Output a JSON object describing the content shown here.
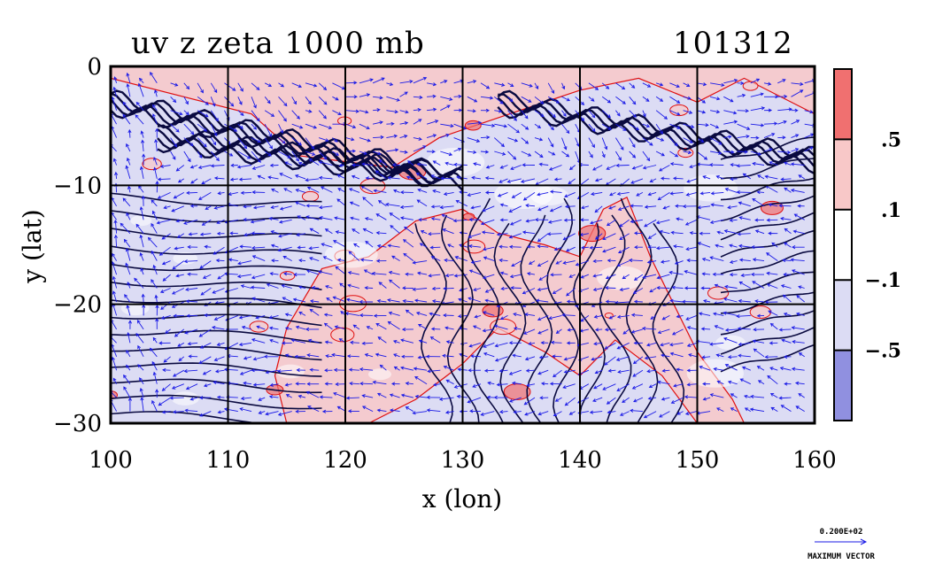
{
  "header": {
    "title": "uv z zeta 1000 mb",
    "timestamp": "101312"
  },
  "chart_data": {
    "type": "heatmap",
    "title": "uv z zeta 1000 mb",
    "xlabel": "x (lon)",
    "ylabel": "y (lat)",
    "xlim": [
      100,
      160
    ],
    "ylim": [
      -30,
      0
    ],
    "x_ticks": [
      100,
      110,
      120,
      130,
      140,
      150,
      160
    ],
    "y_ticks": [
      0,
      -10,
      -20,
      -30
    ],
    "x_tick_labels": [
      "100",
      "110",
      "120",
      "130",
      "140",
      "150",
      "160"
    ],
    "y_tick_labels": [
      "0",
      "−10",
      "−20",
      "−30"
    ],
    "grid": true,
    "colorbar": {
      "levels": [
        0.5,
        0.1,
        -0.1,
        -0.5
      ],
      "labels": [
        ".5",
        ".1",
        "−.1",
        "−.5"
      ],
      "colors": [
        "#f07070",
        "#f8c8c8",
        "#ffffff",
        "#dcdcf4",
        "#9090e0"
      ]
    },
    "overlays": [
      "wind vectors (uv)",
      "geopotential height contours (z)",
      "vorticity shading (zeta)"
    ],
    "max_vector": {
      "value_label": "0.200E+02",
      "caption": "MAXIMUM VECTOR"
    }
  },
  "colors": {
    "contour": "#0a0a40",
    "vector": "#1a1ae6",
    "positive_contour": "#e01010",
    "grid": "#000000"
  }
}
